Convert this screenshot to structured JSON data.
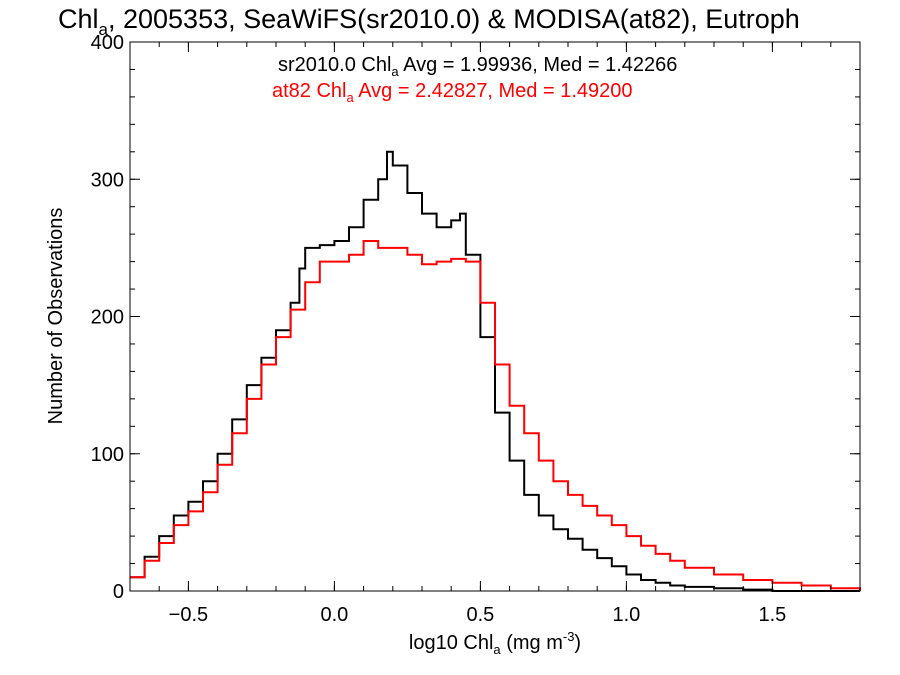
{
  "chart_data": {
    "type": "step-histogram",
    "title": {
      "pre": "Chl",
      "sub": "a",
      "post": ", 2005353, SeaWiFS(sr2010.0) & MODISA(at82), Eutroph"
    },
    "xlabel": {
      "pre": "log10 Chl",
      "sub": "a",
      "mid": " (mg m",
      "sup": "-3",
      "post": ")"
    },
    "ylabel": "Number of Observations",
    "xlim": [
      -0.7,
      1.8
    ],
    "ylim": [
      0,
      400
    ],
    "xticks": [
      -0.5,
      0.0,
      0.5,
      1.0,
      1.5
    ],
    "xtick_labels": [
      "−0.5",
      "0.0",
      "0.5",
      "1.0",
      "1.5"
    ],
    "yticks": [
      0,
      100,
      200,
      300,
      400
    ],
    "ytick_labels": [
      "0",
      "100",
      "200",
      "300",
      "400"
    ],
    "legend": [
      {
        "pre": "sr2010.0 Chl",
        "sub": "a",
        "post": " Avg = 1.99936, Med = 1.42266",
        "color": "#000000"
      },
      {
        "pre": "at82 Chl",
        "sub": "a",
        "post": " Avg = 2.42827, Med = 1.49200",
        "color": "#ff0000"
      }
    ],
    "series": [
      {
        "color": "#000000",
        "x": [
          -0.7,
          -0.65,
          -0.6,
          -0.55,
          -0.5,
          -0.45,
          -0.4,
          -0.35,
          -0.3,
          -0.25,
          -0.2,
          -0.15,
          -0.12,
          -0.1,
          -0.05,
          0.0,
          0.05,
          0.1,
          0.15,
          0.18,
          0.2,
          0.25,
          0.3,
          0.35,
          0.4,
          0.43,
          0.45,
          0.5,
          0.55,
          0.6,
          0.65,
          0.7,
          0.75,
          0.8,
          0.85,
          0.9,
          0.95,
          1.0,
          1.05,
          1.1,
          1.15,
          1.2,
          1.3,
          1.4,
          1.5,
          1.6,
          1.7,
          1.8
        ],
        "y": [
          10,
          25,
          40,
          55,
          65,
          80,
          100,
          125,
          150,
          170,
          190,
          210,
          235,
          250,
          252,
          255,
          265,
          285,
          300,
          320,
          310,
          290,
          275,
          265,
          270,
          275,
          245,
          185,
          130,
          95,
          70,
          55,
          45,
          38,
          30,
          24,
          18,
          12,
          8,
          6,
          4,
          3,
          2,
          1,
          0,
          0,
          0,
          0
        ]
      },
      {
        "color": "#ff0000",
        "x": [
          -0.7,
          -0.65,
          -0.6,
          -0.55,
          -0.5,
          -0.45,
          -0.4,
          -0.35,
          -0.3,
          -0.25,
          -0.2,
          -0.15,
          -0.1,
          -0.05,
          0.0,
          0.05,
          0.1,
          0.15,
          0.2,
          0.25,
          0.3,
          0.35,
          0.4,
          0.45,
          0.5,
          0.55,
          0.6,
          0.65,
          0.7,
          0.75,
          0.8,
          0.85,
          0.9,
          0.95,
          1.0,
          1.05,
          1.1,
          1.15,
          1.2,
          1.3,
          1.4,
          1.5,
          1.6,
          1.7,
          1.8
        ],
        "y": [
          10,
          22,
          35,
          48,
          58,
          72,
          92,
          115,
          140,
          165,
          185,
          205,
          225,
          240,
          240,
          245,
          255,
          250,
          250,
          245,
          238,
          240,
          242,
          240,
          210,
          165,
          135,
          115,
          95,
          80,
          70,
          62,
          55,
          48,
          40,
          33,
          27,
          22,
          17,
          12,
          8,
          6,
          4,
          2,
          0
        ]
      }
    ]
  }
}
